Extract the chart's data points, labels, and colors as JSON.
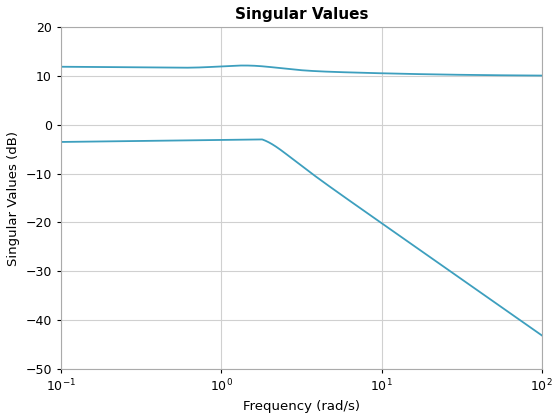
{
  "title": "Singular Values",
  "xlabel": "Frequency (rad/s)",
  "ylabel": "Singular Values (dB)",
  "xlim_log": [
    -1,
    2
  ],
  "ylim": [
    -50,
    20
  ],
  "yticks": [
    -50,
    -40,
    -30,
    -20,
    -10,
    0,
    10,
    20
  ],
  "line_color": "#3d9fbe",
  "line_width": 1.3,
  "background_color": "#ffffff",
  "grid_color": "#d0d0d0",
  "title_fontsize": 11,
  "label_fontsize": 9.5,
  "tick_fontsize": 9
}
